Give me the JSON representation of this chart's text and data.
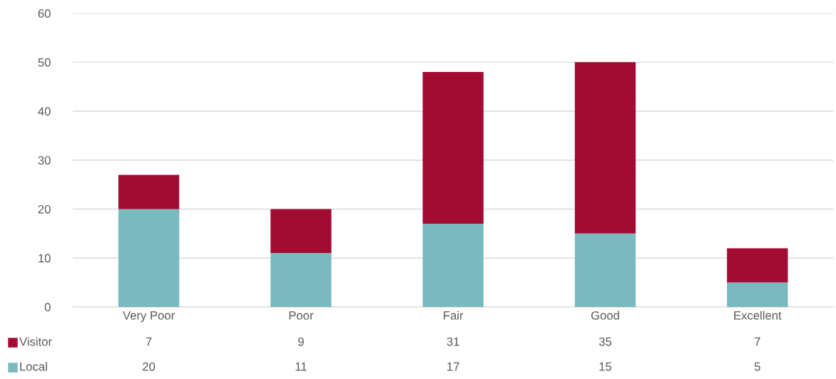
{
  "chart_data": {
    "type": "bar",
    "stacked": true,
    "categories": [
      "Very Poor",
      "Poor",
      "Fair",
      "Good",
      "Excellent"
    ],
    "series": [
      {
        "name": "Local",
        "color": "#7ab9bd",
        "values": [
          20,
          11,
          17,
          15,
          5
        ]
      },
      {
        "name": "Visitor",
        "color": "#a20c33",
        "values": [
          7,
          9,
          31,
          35,
          7
        ]
      }
    ],
    "ylim": [
      0,
      60
    ],
    "yticks": [
      0,
      10,
      20,
      30,
      40,
      50,
      60
    ],
    "grid": "y",
    "legend": "bottom",
    "data_labels": true
  }
}
